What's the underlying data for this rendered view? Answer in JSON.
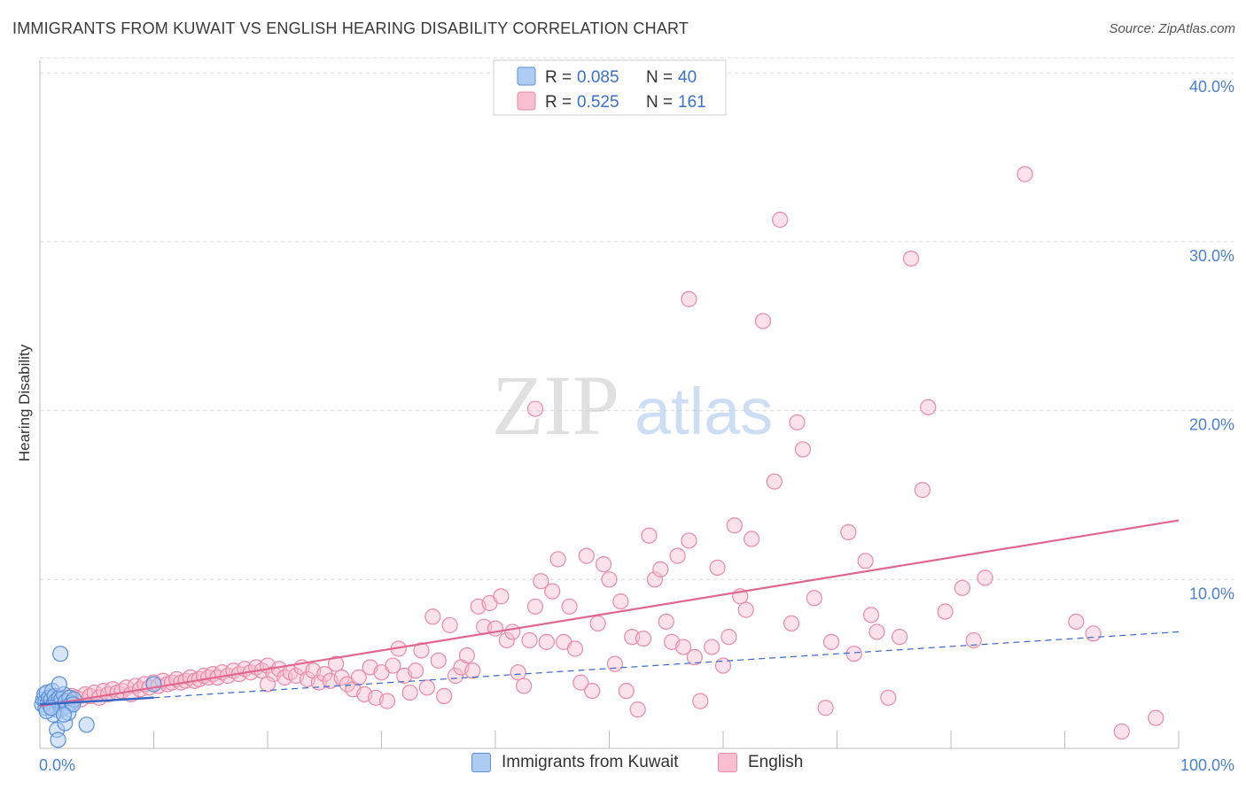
{
  "header": {
    "title": "IMMIGRANTS FROM KUWAIT VS ENGLISH HEARING DISABILITY CORRELATION CHART",
    "source": "Source: ZipAtlas.com"
  },
  "watermark": {
    "zip": "ZIP",
    "atlas": "atlas"
  },
  "colors": {
    "blue_fill": "#aecbf2",
    "blue_stroke": "#5b8fd8",
    "blue_line": "#3b66c4",
    "pink_fill": "#f7bfd0",
    "pink_stroke": "#e88aa8",
    "pink_line": "#e0678f",
    "axis_text": "#4a7fd4",
    "grid": "#d9d9d9"
  },
  "legend_top": {
    "rows": [
      {
        "r_label": "R =",
        "r_value": "0.085",
        "n_label": "N =",
        "n_value": "40",
        "series": "blue"
      },
      {
        "r_label": "R =",
        "r_value": "0.525",
        "n_label": "N =",
        "n_value": "161",
        "series": "pink"
      }
    ]
  },
  "legend_bottom": {
    "items": [
      {
        "label": "Immigrants from Kuwait",
        "series": "blue"
      },
      {
        "label": "English",
        "series": "pink"
      }
    ]
  },
  "chart_data": {
    "type": "scatter",
    "title": "IMMIGRANTS FROM KUWAIT VS ENGLISH HEARING DISABILITY CORRELATION CHART",
    "xlabel": "",
    "ylabel": "Hearing Disability",
    "xlim": [
      0,
      100
    ],
    "ylim": [
      0,
      42
    ],
    "x_tick_labels": [
      {
        "value": 0,
        "label": "0.0%"
      },
      {
        "value": 100,
        "label": "100.0%"
      }
    ],
    "y_tick_labels": [
      {
        "value": 10,
        "label": "10.0%"
      },
      {
        "value": 20,
        "label": "20.0%"
      },
      {
        "value": 30,
        "label": "30.0%"
      },
      {
        "value": 40,
        "label": "40.0%"
      }
    ],
    "grid": true,
    "legend_position": "top-center",
    "series": [
      {
        "name": "Immigrants from Kuwait",
        "color": "blue",
        "R": 0.085,
        "N": 40,
        "trend_solid": [
          [
            0,
            2.6
          ],
          [
            10,
            3.0
          ]
        ],
        "trend_dashed": [
          [
            10,
            3.0
          ],
          [
            100,
            6.9
          ]
        ],
        "points": [
          [
            0.2,
            2.6
          ],
          [
            0.3,
            2.9
          ],
          [
            0.4,
            3.2
          ],
          [
            0.5,
            2.4
          ],
          [
            0.5,
            2.8
          ],
          [
            0.6,
            3.3
          ],
          [
            0.7,
            2.7
          ],
          [
            0.8,
            3.0
          ],
          [
            0.9,
            2.5
          ],
          [
            1.0,
            2.9
          ],
          [
            1.1,
            3.4
          ],
          [
            1.2,
            2.6
          ],
          [
            1.3,
            3.1
          ],
          [
            1.4,
            2.8
          ],
          [
            1.5,
            2.3
          ],
          [
            1.6,
            2.7
          ],
          [
            1.7,
            3.0
          ],
          [
            1.8,
            2.6
          ],
          [
            1.9,
            2.9
          ],
          [
            2.0,
            2.4
          ],
          [
            2.1,
            3.2
          ],
          [
            2.2,
            2.7
          ],
          [
            2.3,
            2.8
          ],
          [
            2.4,
            2.5
          ],
          [
            2.6,
            3.0
          ],
          [
            2.8,
            2.7
          ],
          [
            3.0,
            2.9
          ],
          [
            1.2,
            2.0
          ],
          [
            1.5,
            1.1
          ],
          [
            1.6,
            0.5
          ],
          [
            1.7,
            3.8
          ],
          [
            1.8,
            5.6
          ],
          [
            2.2,
            1.5
          ],
          [
            2.5,
            2.1
          ],
          [
            4.1,
            1.4
          ],
          [
            10.0,
            3.8
          ],
          [
            0.6,
            2.2
          ],
          [
            1.0,
            2.4
          ],
          [
            2.9,
            2.6
          ],
          [
            2.1,
            2.0
          ]
        ]
      },
      {
        "name": "English",
        "color": "pink",
        "R": 0.525,
        "N": 161,
        "trend": [
          [
            0,
            2.5
          ],
          [
            100,
            13.5
          ]
        ],
        "points": [
          [
            0.8,
            2.6
          ],
          [
            1.2,
            2.8
          ],
          [
            1.6,
            2.7
          ],
          [
            2.0,
            3.0
          ],
          [
            2.4,
            2.9
          ],
          [
            2.8,
            3.1
          ],
          [
            3.2,
            3.0
          ],
          [
            3.6,
            2.9
          ],
          [
            4.0,
            3.2
          ],
          [
            4.4,
            3.1
          ],
          [
            4.8,
            3.3
          ],
          [
            5.2,
            3.0
          ],
          [
            5.6,
            3.4
          ],
          [
            6.0,
            3.2
          ],
          [
            6.4,
            3.5
          ],
          [
            6.8,
            3.3
          ],
          [
            7.2,
            3.4
          ],
          [
            7.6,
            3.6
          ],
          [
            8.0,
            3.2
          ],
          [
            8.4,
            3.7
          ],
          [
            8.8,
            3.5
          ],
          [
            9.2,
            3.8
          ],
          [
            9.6,
            3.6
          ],
          [
            10.0,
            3.9
          ],
          [
            10.4,
            3.7
          ],
          [
            10.8,
            4.0
          ],
          [
            11.2,
            3.8
          ],
          [
            11.6,
            3.9
          ],
          [
            12.0,
            4.1
          ],
          [
            12.4,
            3.9
          ],
          [
            12.8,
            4.0
          ],
          [
            13.2,
            4.2
          ],
          [
            13.6,
            4.0
          ],
          [
            14.0,
            4.1
          ],
          [
            14.4,
            4.3
          ],
          [
            14.8,
            4.2
          ],
          [
            15.2,
            4.4
          ],
          [
            15.6,
            4.2
          ],
          [
            16.0,
            4.5
          ],
          [
            16.5,
            4.3
          ],
          [
            17.0,
            4.6
          ],
          [
            17.5,
            4.4
          ],
          [
            18.0,
            4.7
          ],
          [
            18.5,
            4.5
          ],
          [
            19.0,
            4.8
          ],
          [
            19.5,
            4.6
          ],
          [
            20.0,
            4.9
          ],
          [
            20.5,
            4.4
          ],
          [
            21.0,
            4.7
          ],
          [
            21.5,
            4.2
          ],
          [
            22.0,
            4.5
          ],
          [
            22.5,
            4.3
          ],
          [
            23.0,
            4.8
          ],
          [
            23.5,
            4.1
          ],
          [
            24.0,
            4.6
          ],
          [
            24.5,
            3.9
          ],
          [
            25.0,
            4.4
          ],
          [
            25.5,
            4.0
          ],
          [
            26.0,
            5.0
          ],
          [
            26.5,
            4.2
          ],
          [
            27.0,
            3.8
          ],
          [
            27.5,
            3.5
          ],
          [
            28.0,
            4.2
          ],
          [
            28.5,
            3.2
          ],
          [
            29.0,
            4.8
          ],
          [
            29.5,
            3.0
          ],
          [
            30.0,
            4.5
          ],
          [
            30.5,
            2.8
          ],
          [
            31.0,
            4.9
          ],
          [
            31.5,
            5.9
          ],
          [
            32.0,
            4.3
          ],
          [
            32.5,
            3.3
          ],
          [
            33.0,
            4.6
          ],
          [
            33.5,
            5.8
          ],
          [
            34.0,
            3.6
          ],
          [
            34.5,
            7.8
          ],
          [
            35.0,
            5.2
          ],
          [
            35.5,
            3.1
          ],
          [
            36.0,
            7.3
          ],
          [
            36.5,
            4.3
          ],
          [
            37.0,
            4.8
          ],
          [
            37.5,
            5.5
          ],
          [
            38.0,
            4.6
          ],
          [
            38.5,
            8.4
          ],
          [
            39.0,
            7.2
          ],
          [
            39.5,
            8.6
          ],
          [
            40.0,
            7.1
          ],
          [
            40.5,
            9.0
          ],
          [
            41.0,
            6.4
          ],
          [
            41.5,
            6.9
          ],
          [
            42.0,
            4.5
          ],
          [
            42.5,
            3.7
          ],
          [
            43.0,
            6.4
          ],
          [
            43.5,
            8.4
          ],
          [
            44.0,
            9.9
          ],
          [
            44.5,
            6.3
          ],
          [
            45.0,
            9.3
          ],
          [
            45.5,
            11.2
          ],
          [
            46.0,
            6.3
          ],
          [
            46.5,
            8.4
          ],
          [
            47.0,
            5.9
          ],
          [
            47.5,
            3.9
          ],
          [
            48.0,
            11.4
          ],
          [
            48.5,
            3.4
          ],
          [
            49.0,
            7.4
          ],
          [
            49.5,
            10.9
          ],
          [
            50.0,
            10.0
          ],
          [
            50.5,
            5.0
          ],
          [
            51.0,
            8.7
          ],
          [
            51.5,
            3.4
          ],
          [
            52.0,
            6.6
          ],
          [
            52.5,
            2.3
          ],
          [
            53.0,
            6.5
          ],
          [
            53.5,
            12.6
          ],
          [
            54.0,
            10.0
          ],
          [
            54.5,
            10.6
          ],
          [
            55.0,
            7.5
          ],
          [
            55.5,
            6.3
          ],
          [
            56.0,
            11.4
          ],
          [
            56.5,
            6.0
          ],
          [
            57.0,
            12.3
          ],
          [
            57.5,
            5.4
          ],
          [
            58.0,
            2.8
          ],
          [
            59.0,
            6.0
          ],
          [
            59.5,
            10.7
          ],
          [
            60.0,
            4.9
          ],
          [
            60.5,
            6.6
          ],
          [
            61.0,
            13.2
          ],
          [
            61.5,
            9.0
          ],
          [
            62.0,
            8.2
          ],
          [
            62.5,
            12.4
          ],
          [
            63.5,
            25.3
          ],
          [
            64.5,
            15.8
          ],
          [
            65.0,
            31.3
          ],
          [
            66.0,
            7.4
          ],
          [
            66.5,
            19.3
          ],
          [
            67.0,
            17.7
          ],
          [
            68.0,
            8.9
          ],
          [
            69.0,
            2.4
          ],
          [
            69.5,
            6.3
          ],
          [
            71.0,
            12.8
          ],
          [
            71.5,
            5.6
          ],
          [
            72.5,
            11.1
          ],
          [
            73.0,
            7.9
          ],
          [
            73.5,
            6.9
          ],
          [
            74.5,
            3.0
          ],
          [
            75.5,
            6.6
          ],
          [
            76.5,
            29.0
          ],
          [
            77.5,
            15.3
          ],
          [
            78.0,
            20.2
          ],
          [
            79.5,
            8.1
          ],
          [
            81.0,
            9.5
          ],
          [
            82.0,
            6.4
          ],
          [
            83.0,
            10.1
          ],
          [
            86.5,
            34.0
          ],
          [
            91.0,
            7.5
          ],
          [
            92.5,
            6.8
          ],
          [
            95.0,
            1.0
          ],
          [
            98.0,
            1.8
          ],
          [
            57.0,
            26.6
          ],
          [
            43.5,
            20.1
          ],
          [
            20.0,
            3.8
          ]
        ]
      }
    ]
  }
}
